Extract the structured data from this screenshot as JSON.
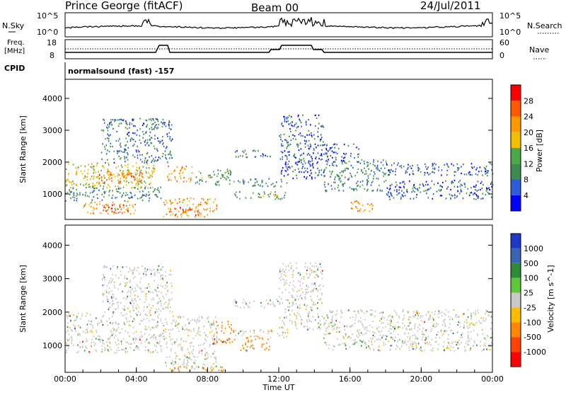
{
  "header": {
    "station": "Prince George (fitACF)",
    "beam": "Beam 00",
    "date": "24/Jul/2011"
  },
  "top_panels": {
    "nsky_label": "N.Sky",
    "nsearch_label": "N.Search",
    "nsky_ticks": [
      "10^5",
      "10^0"
    ],
    "nsearch_ticks": [
      "10^5",
      "10^0"
    ],
    "freq_label": "Freq.",
    "freq_unit": "[MHz]",
    "freq_ticks": [
      "18",
      "8"
    ],
    "nave_label": "Nave",
    "nave_ticks": [
      "60",
      "0"
    ],
    "cpid_label": "CPID",
    "cpid_text": "normalsound (fast) -157"
  },
  "colors": {
    "power": [
      "#0000ff",
      "#2d5bd9",
      "#3c8c50",
      "#4aa84a",
      "#f0c000",
      "#ff9900",
      "#ff5a00",
      "#ff0000"
    ],
    "velocity": [
      "#2038c8",
      "#3a64b4",
      "#2e8b3a",
      "#5ec83a",
      "#c8c8c8",
      "#ffbb00",
      "#ff8800",
      "#ff4400",
      "#ff0000"
    ]
  },
  "chart_data": [
    {
      "type": "heatmap",
      "quantity": "power",
      "ylabel": "Slant Range [km]",
      "yticks": [
        "4000",
        "3000",
        "2000",
        "1000"
      ],
      "ylim": [
        200,
        4600
      ],
      "xlim": [
        0,
        24
      ],
      "colorbar_label": "Power [dB]",
      "colorbar_ticks": [
        "28",
        "24",
        "20",
        "16",
        "12",
        "8",
        "4"
      ],
      "colorbar_range": [
        0,
        32
      ],
      "regions": [
        {
          "t0": 0.0,
          "t1": 5.0,
          "r0": 1200,
          "r1": 2000,
          "level": 18
        },
        {
          "t0": 1.5,
          "t1": 4.5,
          "r0": 1350,
          "r1": 1750,
          "level": 24
        },
        {
          "t0": 0.0,
          "t1": 5.5,
          "r0": 800,
          "r1": 1250,
          "level": 10
        },
        {
          "t0": 1.0,
          "t1": 4.0,
          "r0": 400,
          "r1": 800,
          "level": 20
        },
        {
          "t0": 2.0,
          "t1": 3.5,
          "r0": 450,
          "r1": 700,
          "level": 28
        },
        {
          "t0": 5.5,
          "t1": 8.5,
          "r0": 300,
          "r1": 900,
          "level": 22
        },
        {
          "t0": 6.0,
          "t1": 7.5,
          "r0": 350,
          "r1": 600,
          "level": 28
        },
        {
          "t0": 5.7,
          "t1": 7.2,
          "r0": 1400,
          "r1": 1900,
          "level": 22
        },
        {
          "t0": 7.3,
          "t1": 9.5,
          "r0": 1300,
          "r1": 1800,
          "level": 12
        },
        {
          "t0": 2.0,
          "t1": 6.0,
          "r0": 2000,
          "r1": 3400,
          "level": 8
        },
        {
          "t0": 9.5,
          "t1": 12.5,
          "r0": 1250,
          "r1": 1500,
          "level": 10
        },
        {
          "t0": 9.5,
          "t1": 12.5,
          "r0": 850,
          "r1": 1100,
          "level": 12
        },
        {
          "t0": 9.5,
          "t1": 11.5,
          "r0": 2150,
          "r1": 2400,
          "level": 8
        },
        {
          "t0": 12.0,
          "t1": 14.5,
          "r0": 1500,
          "r1": 3500,
          "level": 6
        },
        {
          "t0": 14.5,
          "t1": 18.0,
          "r0": 1100,
          "r1": 2100,
          "level": 10
        },
        {
          "t0": 16.0,
          "t1": 17.3,
          "r0": 450,
          "r1": 800,
          "level": 24
        },
        {
          "t0": 18.0,
          "t1": 24.0,
          "r0": 1600,
          "r1": 2000,
          "level": 6
        },
        {
          "t0": 18.0,
          "t1": 24.0,
          "r0": 850,
          "r1": 1450,
          "level": 6
        },
        {
          "t0": 14.5,
          "t1": 16.5,
          "r0": 2000,
          "r1": 2600,
          "level": 6
        }
      ]
    },
    {
      "type": "heatmap",
      "quantity": "velocity",
      "xlabel": "Time UT",
      "xticks": [
        "00:00",
        "04:00",
        "08:00",
        "12:00",
        "16:00",
        "20:00",
        "00:00"
      ],
      "ylabel": "Slant Range [km]",
      "yticks": [
        "4000",
        "3000",
        "2000",
        "1000"
      ],
      "ylim": [
        200,
        4600
      ],
      "xlim": [
        0,
        24
      ],
      "colorbar_label": "Velocity [m s^-1]",
      "colorbar_ticks": [
        "1000",
        "500",
        "100",
        "25",
        "-25",
        "-100",
        "-500",
        "-1000"
      ],
      "regions": [
        {
          "t0": 0.0,
          "t1": 5.5,
          "r0": 800,
          "r1": 2000,
          "v": 0
        },
        {
          "t0": 5.5,
          "t1": 8.5,
          "r0": 300,
          "r1": 1900,
          "v": 0
        },
        {
          "t0": 8.3,
          "t1": 9.5,
          "r0": 1100,
          "r1": 1800,
          "v": -200
        },
        {
          "t0": 9.8,
          "t1": 11.5,
          "r0": 850,
          "r1": 1300,
          "v": -150
        },
        {
          "t0": 9.5,
          "t1": 12.0,
          "r0": 2150,
          "r1": 2400,
          "v": 0
        },
        {
          "t0": 9.5,
          "t1": 12.5,
          "r0": 1250,
          "r1": 1500,
          "v": 0
        },
        {
          "t0": 12.0,
          "t1": 14.5,
          "r0": 1500,
          "r1": 3500,
          "v": 0
        },
        {
          "t0": 14.5,
          "t1": 24.0,
          "r0": 850,
          "r1": 2100,
          "v": 0
        },
        {
          "t0": 2.0,
          "t1": 6.0,
          "r0": 2000,
          "r1": 3400,
          "v": 0
        },
        {
          "t0": 6.0,
          "t1": 9.0,
          "r0": 250,
          "r1": 400,
          "v": -300
        }
      ]
    }
  ]
}
